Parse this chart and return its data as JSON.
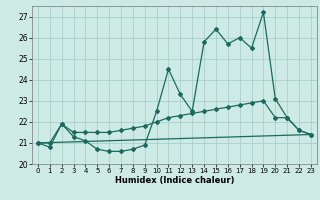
{
  "xlabel": "Humidex (Indice chaleur)",
  "background_color": "#ceeae5",
  "grid_color": "#aacfca",
  "line_color": "#1a6b5e",
  "xlim": [
    -0.5,
    23.5
  ],
  "ylim": [
    20,
    27.5
  ],
  "yticks": [
    20,
    21,
    22,
    23,
    24,
    25,
    26,
    27
  ],
  "xticks": [
    0,
    1,
    2,
    3,
    4,
    5,
    6,
    7,
    8,
    9,
    10,
    11,
    12,
    13,
    14,
    15,
    16,
    17,
    18,
    19,
    20,
    21,
    22,
    23
  ],
  "series1_x": [
    0,
    1,
    2,
    3,
    4,
    5,
    6,
    7,
    8,
    9,
    10,
    11,
    12,
    13,
    14,
    15,
    16,
    17,
    18,
    19,
    20,
    21,
    22,
    23
  ],
  "series1_y": [
    21.0,
    20.8,
    21.9,
    21.3,
    21.1,
    20.7,
    20.6,
    20.6,
    20.7,
    20.9,
    22.5,
    24.5,
    23.3,
    22.5,
    25.8,
    26.4,
    25.7,
    26.0,
    25.5,
    27.2,
    23.1,
    22.2,
    21.6,
    21.4
  ],
  "series2_x": [
    0,
    1,
    2,
    3,
    4,
    5,
    6,
    7,
    8,
    9,
    10,
    11,
    12,
    13,
    14,
    15,
    16,
    17,
    18,
    19,
    20,
    21,
    22,
    23
  ],
  "series2_y": [
    21.0,
    21.0,
    21.9,
    21.5,
    21.5,
    21.5,
    21.5,
    21.6,
    21.7,
    21.8,
    22.0,
    22.2,
    22.3,
    22.4,
    22.5,
    22.6,
    22.7,
    22.8,
    22.9,
    23.0,
    22.2,
    22.2,
    21.6,
    21.4
  ],
  "series3_x": [
    0,
    23
  ],
  "series3_y": [
    21.0,
    21.4
  ]
}
